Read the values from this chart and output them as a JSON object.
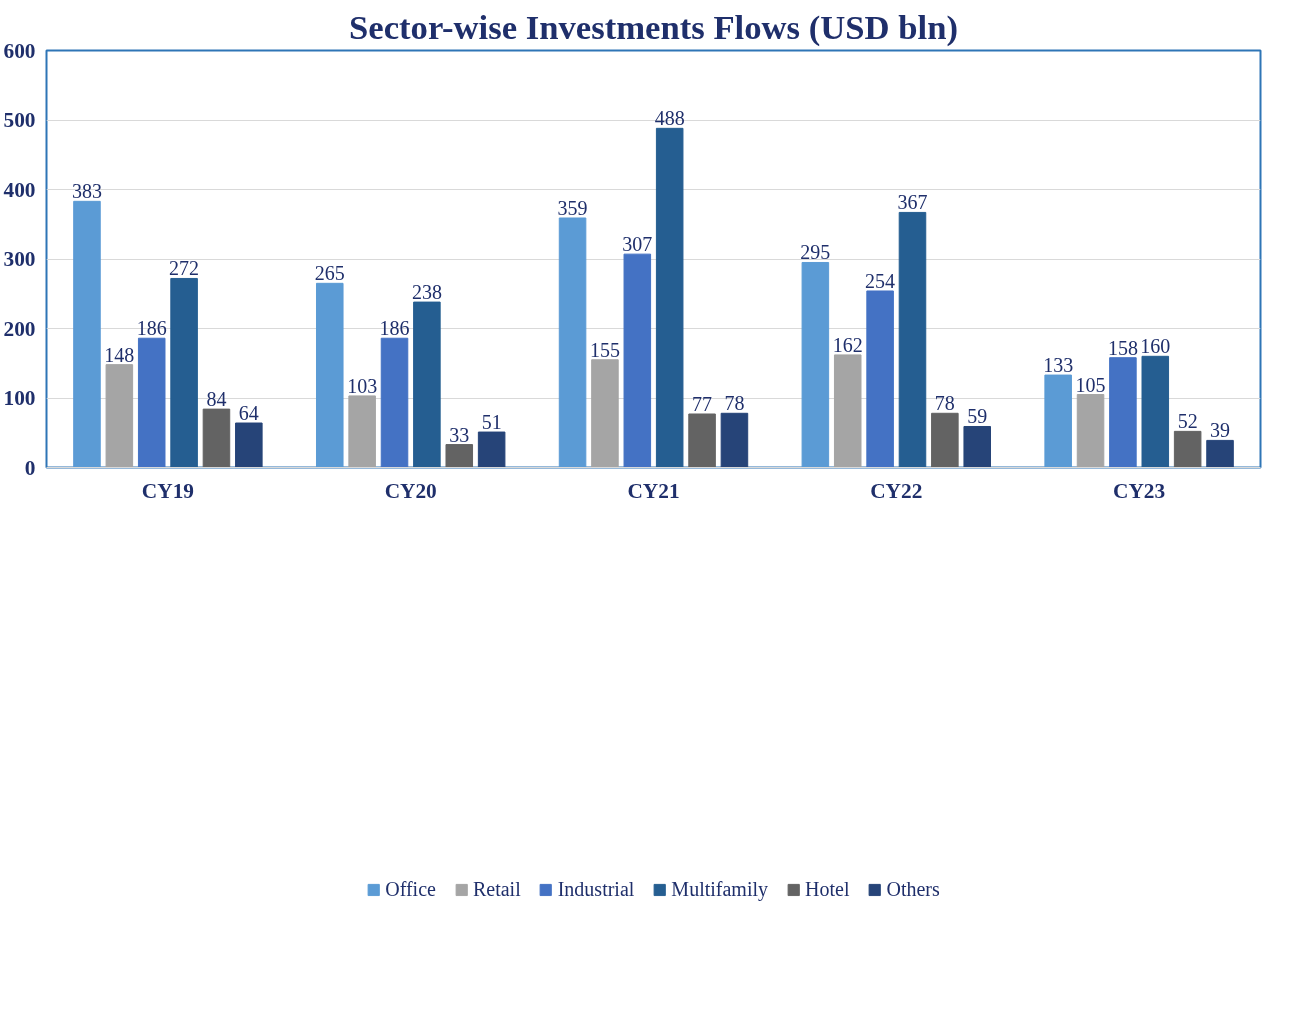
{
  "chart_data": {
    "type": "bar",
    "title": "Sector-wise Investments Flows (USD bln)",
    "categories": [
      "CY19",
      "CY20",
      "CY21",
      "CY22",
      "CY23"
    ],
    "series": [
      {
        "name": "Office",
        "color": "#5b9bd5",
        "values": [
          383,
          265,
          359,
          295,
          133
        ]
      },
      {
        "name": "Retail",
        "color": "#a5a5a5",
        "values": [
          148,
          103,
          155,
          162,
          105
        ]
      },
      {
        "name": "Industrial",
        "color": "#4472c4",
        "values": [
          186,
          186,
          307,
          254,
          158
        ]
      },
      {
        "name": "Multifamily",
        "color": "#255e91",
        "values": [
          272,
          238,
          488,
          367,
          160
        ]
      },
      {
        "name": "Hotel",
        "color": "#636363",
        "values": [
          84,
          33,
          77,
          78,
          52
        ]
      },
      {
        "name": "Others",
        "color": "#264478",
        "values": [
          64,
          51,
          78,
          59,
          39
        ]
      }
    ],
    "ylim": [
      0,
      600
    ],
    "yticks": [
      0,
      100,
      200,
      300,
      400,
      500,
      600
    ],
    "grid": "y",
    "legend": "bottom",
    "data_labels": true
  }
}
